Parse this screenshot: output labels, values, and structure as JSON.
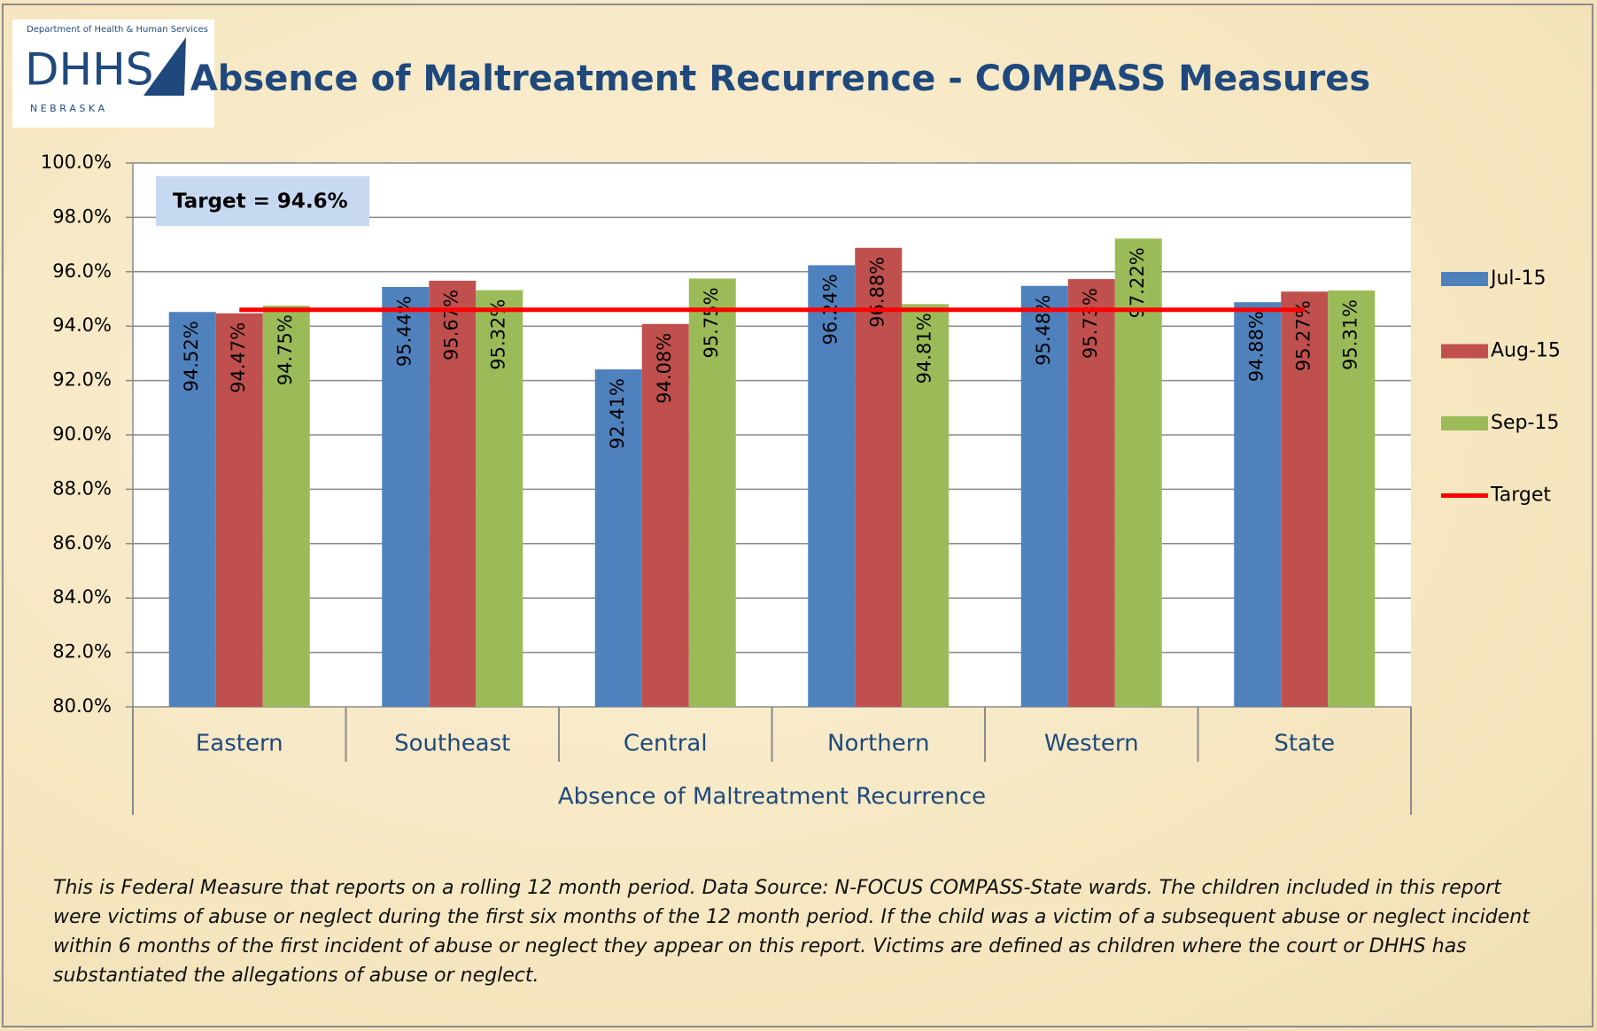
{
  "logo": {
    "department": "Department of Health & Human Services",
    "name": "DHHS",
    "state": "N E B R A S K A"
  },
  "chart_data": {
    "type": "bar",
    "title": "Absence of Maltreatment Recurrence - COMPASS Measures",
    "annotation": "Target = 94.6%",
    "x_label": "Absence of Maltreatment Recurrence",
    "categories": [
      "Eastern",
      "Southeast",
      "Central",
      "Northern",
      "Western",
      "State"
    ],
    "series": [
      {
        "name": "Jul-15",
        "color": "#4f81bd",
        "values": [
          94.52,
          95.44,
          92.41,
          96.24,
          95.48,
          94.88
        ],
        "value_labels": [
          "94.52%",
          "95.44%",
          "92.41%",
          "96.24%",
          "95.48%",
          "94.88%"
        ]
      },
      {
        "name": "Aug-15",
        "color": "#c0504d",
        "values": [
          94.47,
          95.67,
          94.08,
          96.88,
          95.73,
          95.27
        ],
        "value_labels": [
          "94.47%",
          "95.67%",
          "94.08%",
          "96.88%",
          "95.73%",
          "95.27%"
        ]
      },
      {
        "name": "Sep-15",
        "color": "#9bbb59",
        "values": [
          94.75,
          95.32,
          95.75,
          94.81,
          97.22,
          95.31
        ],
        "value_labels": [
          "94.75%",
          "95.32%",
          "95.75%",
          "94.81%",
          "97.22%",
          "95.31%"
        ]
      },
      {
        "name": "Target",
        "color": "#ff0000",
        "type": "line",
        "values": [
          94.6,
          94.6,
          94.6,
          94.6,
          94.6,
          94.6
        ]
      }
    ],
    "ylim": [
      80,
      100
    ],
    "yticks": [
      {
        "value": 80,
        "label": "80.0%"
      },
      {
        "value": 82,
        "label": "82.0%"
      },
      {
        "value": 84,
        "label": "84.0%"
      },
      {
        "value": 86,
        "label": "86.0%"
      },
      {
        "value": 88,
        "label": "88.0%"
      },
      {
        "value": 90,
        "label": "90.0%"
      },
      {
        "value": 92,
        "label": "92.0%"
      },
      {
        "value": 94,
        "label": "94.0%"
      },
      {
        "value": 96,
        "label": "96.0%"
      },
      {
        "value": 98,
        "label": "98.0%"
      },
      {
        "value": 100,
        "label": "100.0%"
      }
    ],
    "grid": true,
    "legend": "right"
  },
  "footnote": "This is Federal Measure that reports on a rolling 12 month period.  Data Source: N-FOCUS COMPASS-State wards.  The children included in this report were victims of  abuse or neglect during the first six months of the 12 month period.  If the child was a victim of a subsequent abuse or neglect incident within 6 months of the first incident of abuse or neglect they appear on this report.  Victims are defined as children where the court or DHHS has substantiated the allegations of abuse or neglect."
}
